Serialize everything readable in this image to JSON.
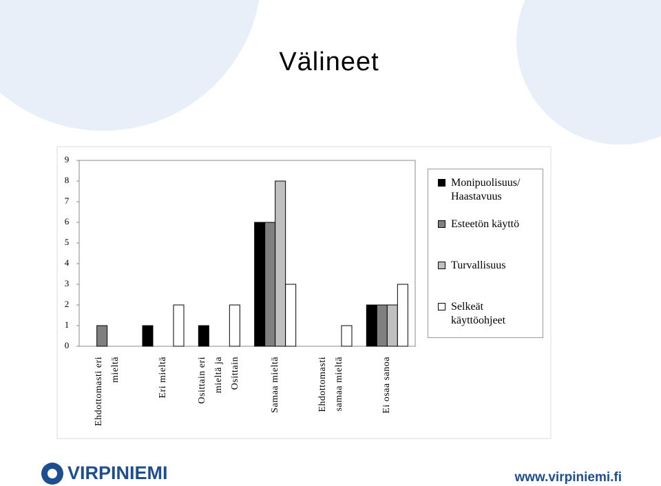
{
  "chart_data": {
    "type": "bar",
    "title": "Välineet",
    "categories": [
      "Ehdottomasti eri mieltä",
      "Eri mieltä",
      "Osittain eri mieltä ja Osittain",
      "Samaa mieltä",
      "Ehdottomasti samaa mieltä",
      "Ei osaa sanoa"
    ],
    "series": [
      {
        "name": "Monipuolisuus/ Haastavuus",
        "color": "#000000",
        "values": [
          0,
          1,
          1,
          6,
          0,
          2
        ]
      },
      {
        "name": "Esteetön käyttö",
        "color": "#808080",
        "values": [
          1,
          0,
          0,
          6,
          0,
          2
        ]
      },
      {
        "name": "Turvallisuus",
        "color": "#c0c0c0",
        "values": [
          0,
          0,
          0,
          8,
          0,
          2
        ]
      },
      {
        "name": "Selkeät käyttöohjeet",
        "color": "#ffffff",
        "values": [
          0,
          2,
          2,
          3,
          1,
          3
        ]
      }
    ],
    "ylim": [
      0,
      9
    ],
    "yticks": [
      0,
      1,
      2,
      3,
      4,
      5,
      6,
      7,
      8,
      9
    ],
    "grid": false,
    "legend": "right"
  },
  "footer": {
    "logo": "VIRPINIEMI",
    "url": "www.virpiniemi.fi"
  }
}
